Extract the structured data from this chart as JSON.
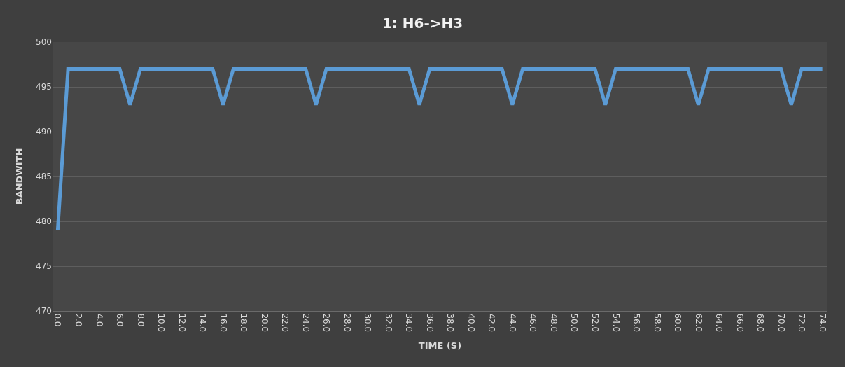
{
  "chart_data": {
    "type": "line",
    "title": "1: H6->H3",
    "xlabel": "TIME (S)",
    "ylabel": "BANDWITH",
    "x": [
      0,
      1,
      6,
      7,
      8,
      15,
      16,
      17,
      24,
      25,
      26,
      34,
      35,
      36,
      43,
      44,
      45,
      52,
      53,
      54,
      61,
      62,
      63,
      70,
      71,
      72,
      74
    ],
    "series": [
      {
        "color": "#5b9bd5",
        "values": [
          479,
          497,
          497,
          493,
          497,
          497,
          493,
          497,
          497,
          493,
          497,
          497,
          493,
          497,
          497,
          493,
          497,
          497,
          493,
          497,
          497,
          493,
          497,
          497,
          493,
          497,
          497
        ]
      }
    ],
    "xlim": [
      -0.5,
      74.5
    ],
    "xticks": [
      {
        "value": 0,
        "label": "0.0"
      },
      {
        "value": 2,
        "label": "2.0"
      },
      {
        "value": 4,
        "label": "4.0"
      },
      {
        "value": 6,
        "label": "6.0"
      },
      {
        "value": 8,
        "label": "8.0"
      },
      {
        "value": 10,
        "label": "10.0"
      },
      {
        "value": 12,
        "label": "12.0"
      },
      {
        "value": 14,
        "label": "14.0"
      },
      {
        "value": 16,
        "label": "16.0"
      },
      {
        "value": 18,
        "label": "18.0"
      },
      {
        "value": 20,
        "label": "20.0"
      },
      {
        "value": 22,
        "label": "22.0"
      },
      {
        "value": 24,
        "label": "24.0"
      },
      {
        "value": 26,
        "label": "26.0"
      },
      {
        "value": 28,
        "label": "28.0"
      },
      {
        "value": 30,
        "label": "30.0"
      },
      {
        "value": 32,
        "label": "32.0"
      },
      {
        "value": 34,
        "label": "34.0"
      },
      {
        "value": 36,
        "label": "36.0"
      },
      {
        "value": 38,
        "label": "38.0"
      },
      {
        "value": 40,
        "label": "40.0"
      },
      {
        "value": 42,
        "label": "42.0"
      },
      {
        "value": 44,
        "label": "44.0"
      },
      {
        "value": 46,
        "label": "46.0"
      },
      {
        "value": 48,
        "label": "48.0"
      },
      {
        "value": 50,
        "label": "50.0"
      },
      {
        "value": 52,
        "label": "52.0"
      },
      {
        "value": 54,
        "label": "54.0"
      },
      {
        "value": 56,
        "label": "56.0"
      },
      {
        "value": 58,
        "label": "58.0"
      },
      {
        "value": 60,
        "label": "60.0"
      },
      {
        "value": 62,
        "label": "62.0"
      },
      {
        "value": 64,
        "label": "64.0"
      },
      {
        "value": 66,
        "label": "66.0"
      },
      {
        "value": 68,
        "label": "68.0"
      },
      {
        "value": 70,
        "label": "70.0"
      },
      {
        "value": 72,
        "label": "72.0"
      },
      {
        "value": 74,
        "label": "74.0"
      }
    ],
    "ylim": [
      470,
      500
    ],
    "yticks": [
      470,
      475,
      480,
      485,
      490,
      495,
      500
    ],
    "grid": "y",
    "marker": "none",
    "line_style": "solid"
  }
}
